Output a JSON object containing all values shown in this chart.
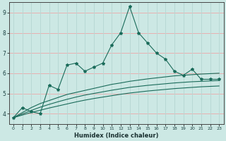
{
  "title": "",
  "xlabel": "Humidex (Indice chaleur)",
  "ylabel": "",
  "background_color": "#cce8e4",
  "grid_color_h": "#e8b0b0",
  "grid_color_v": "#b8d8d4",
  "line_color": "#1a6b5a",
  "x_main": [
    0,
    1,
    2,
    3,
    4,
    5,
    6,
    7,
    8,
    9,
    10,
    11,
    12,
    13,
    14,
    15,
    16,
    17,
    18,
    19,
    20,
    21,
    22,
    23
  ],
  "y_main": [
    3.8,
    4.3,
    4.1,
    4.0,
    5.4,
    5.2,
    6.4,
    6.5,
    6.1,
    6.3,
    6.5,
    7.4,
    8.0,
    9.3,
    8.0,
    7.5,
    7.0,
    6.7,
    6.1,
    5.9,
    6.2,
    5.7,
    5.7,
    5.7
  ],
  "y_line1": [
    3.8,
    4.05,
    4.3,
    4.5,
    4.65,
    4.8,
    4.95,
    5.05,
    5.15,
    5.25,
    5.35,
    5.45,
    5.52,
    5.6,
    5.66,
    5.72,
    5.77,
    5.82,
    5.87,
    5.9,
    5.93,
    5.96,
    5.98,
    6.0
  ],
  "y_line2": [
    3.8,
    3.98,
    4.16,
    4.32,
    4.46,
    4.59,
    4.71,
    4.82,
    4.92,
    5.0,
    5.08,
    5.16,
    5.23,
    5.3,
    5.35,
    5.4,
    5.44,
    5.48,
    5.52,
    5.55,
    5.58,
    5.6,
    5.62,
    5.64
  ],
  "y_line3": [
    3.8,
    3.93,
    4.06,
    4.17,
    4.28,
    4.38,
    4.48,
    4.58,
    4.67,
    4.75,
    4.82,
    4.89,
    4.96,
    5.02,
    5.07,
    5.12,
    5.16,
    5.2,
    5.24,
    5.27,
    5.3,
    5.33,
    5.35,
    5.37
  ],
  "xlim": [
    0,
    23
  ],
  "ylim": [
    3.5,
    9.5
  ],
  "yticks": [
    4,
    5,
    6,
    7,
    8,
    9
  ],
  "xticks": [
    0,
    1,
    2,
    3,
    4,
    5,
    6,
    7,
    8,
    9,
    10,
    11,
    12,
    13,
    14,
    15,
    16,
    17,
    18,
    19,
    20,
    21,
    22,
    23
  ]
}
